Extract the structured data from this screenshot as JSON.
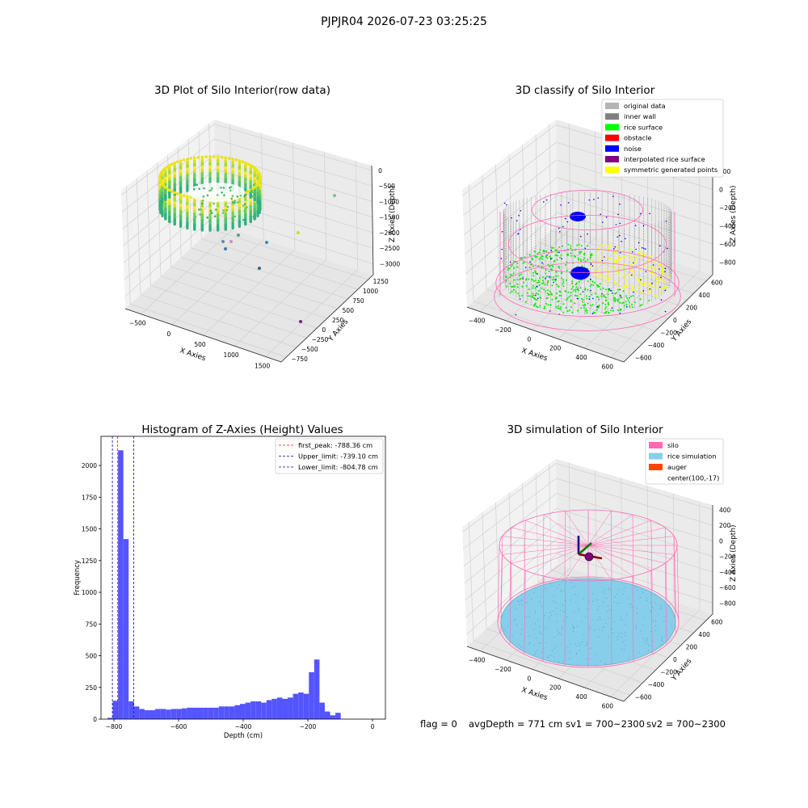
{
  "figure": {
    "suptitle": "PJPJR04 2026-07-23 03:25:25",
    "footer": {
      "flag": "flag = 0",
      "avg_depth": "avgDepth = 771 cm",
      "sv1": "sv1 = 700~2300",
      "sv2": "sv2 = 700~2300"
    }
  },
  "colors": {
    "rice_surface": "#00ff00",
    "noise": "#0000ff",
    "inner_wall": "#808080",
    "original": "#b3b3b3",
    "symmetric": "#ffff00",
    "silo": "#ff69b4",
    "rice_simulation": "#87ceeb",
    "auger": "#ff4500",
    "histogram": "#5555ff",
    "first_peak_line": "#ff0000",
    "limit_line": "#0000aa"
  },
  "chart_data": [
    {
      "type": "scatter",
      "title": "3D Plot of Silo Interior(row data)",
      "xlabel": "X Axies",
      "ylabel": "Y Axies",
      "zlabel": "Z Axies (Depth)",
      "x_ticks": [
        "−500",
        "0",
        "500",
        "1000",
        "1500"
      ],
      "y_ticks": [
        "−750",
        "−500",
        "−250",
        "0",
        "250",
        "500",
        "750",
        "1000",
        "1250"
      ],
      "z_ticks": [
        "0",
        "−500",
        "−1000",
        "−1500",
        "−2000",
        "−2500",
        "−3000"
      ],
      "colormap": "viridis"
    },
    {
      "type": "scatter",
      "title": "3D classify of Silo Interior",
      "xlabel": "X Axies",
      "ylabel": "Y Axies",
      "zlabel": "Z Axies (Depth)",
      "x_ticks": [
        "−400",
        "−200",
        "0",
        "200",
        "400",
        "600"
      ],
      "y_ticks": [
        "−600",
        "−400",
        "−200",
        "0",
        "200",
        "400",
        "600"
      ],
      "z_ticks": [
        "200",
        "0",
        "−200",
        "−400",
        "−600",
        "−800"
      ],
      "legend": [
        {
          "label": "original data",
          "color": "#b3b3b3"
        },
        {
          "label": "inner wall",
          "color": "#808080"
        },
        {
          "label": "rice surface",
          "color": "#00ff00"
        },
        {
          "label": "obstacle",
          "color": "#ff0000"
        },
        {
          "label": "noise",
          "color": "#0000ff"
        },
        {
          "label": "interpolated rice surface",
          "color": "#800080"
        },
        {
          "label": "symmetric generated points",
          "color": "#ffff00"
        }
      ]
    },
    {
      "type": "bar",
      "title": "Histogram of Z-Axies (Height) Values",
      "xlabel": "Depth (cm)",
      "ylabel": "Frequency",
      "xlim": [
        -840,
        40
      ],
      "ylim": [
        0,
        2230
      ],
      "x_ticks": [
        -800,
        -600,
        -400,
        -200,
        0
      ],
      "x_tick_labels": [
        "−800",
        "−600",
        "−400",
        "−200",
        "0"
      ],
      "y_ticks": [
        0,
        250,
        500,
        750,
        1000,
        1250,
        1500,
        1750,
        2000
      ],
      "bin_start": -820,
      "bin_width": 16.4,
      "values": [
        10,
        145,
        2120,
        1420,
        140,
        100,
        80,
        70,
        70,
        80,
        80,
        75,
        80,
        80,
        85,
        90,
        90,
        90,
        90,
        90,
        90,
        100,
        100,
        100,
        110,
        120,
        130,
        140,
        140,
        130,
        150,
        160,
        170,
        160,
        170,
        200,
        210,
        200,
        370,
        470,
        130,
        60,
        30,
        50
      ],
      "legend": [
        {
          "label": "first_peak: -788.36 cm",
          "value": -788.36,
          "color": "#ff0000"
        },
        {
          "label": "Upper_limit: -739.10 cm",
          "value": -739.1,
          "color": "#0000aa"
        },
        {
          "label": "Lower_limit: -804.78 cm",
          "value": -804.78,
          "color": "#0000aa"
        }
      ]
    },
    {
      "type": "scatter",
      "title": "3D simulation of Silo Interior",
      "xlabel": "X Axies",
      "ylabel": "Y Axies",
      "zlabel": "Z Axies (Depth)",
      "x_ticks": [
        "−400",
        "−200",
        "0",
        "200",
        "400",
        "600"
      ],
      "y_ticks": [
        "−600",
        "−400",
        "−200",
        "0",
        "200",
        "400",
        "600"
      ],
      "z_ticks": [
        "400",
        "200",
        "0",
        "−200",
        "−400",
        "−600",
        "−800"
      ],
      "legend": [
        {
          "label": "silo",
          "color": "#ff69b4"
        },
        {
          "label": "rice simulation",
          "color": "#87ceeb"
        },
        {
          "label": "auger",
          "color": "#ff4500"
        },
        {
          "label": "center(100,-17)",
          "color": ""
        }
      ]
    }
  ]
}
